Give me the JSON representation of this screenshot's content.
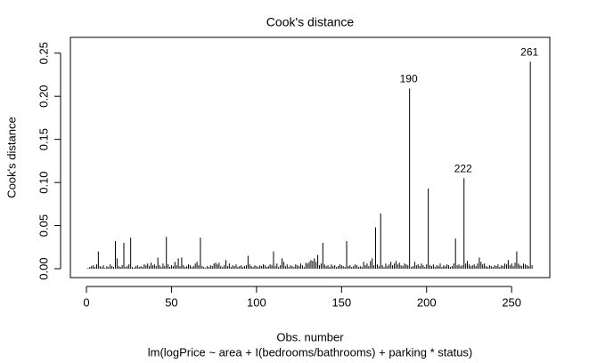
{
  "chart_data": {
    "type": "spike",
    "title": "Cook's distance",
    "xlabel": "Obs. number",
    "ylabel": "Cook's distance",
    "subtitle": "lm(logPrice ~ area + I(bedrooms/bathrooms) + parking * status)",
    "color": "#000000",
    "xlim": [
      -9.44,
      272.44
    ],
    "ylim": [
      -0.0103,
      0.2683
    ],
    "xticks": [
      0,
      50,
      100,
      150,
      200,
      250
    ],
    "yticks": [
      {
        "value": 0,
        "label": "0.00"
      },
      {
        "value": 0.05,
        "label": "0.05"
      },
      {
        "value": 0.1,
        "label": "0.10"
      },
      {
        "value": 0.15,
        "label": "0.15"
      },
      {
        "value": 0.2,
        "label": "0.20"
      },
      {
        "value": 0.25,
        "label": "0.25"
      }
    ],
    "x": [
      1,
      2,
      3,
      4,
      5,
      6,
      7,
      8,
      9,
      10,
      11,
      12,
      13,
      14,
      15,
      16,
      17,
      18,
      19,
      20,
      21,
      22,
      23,
      24,
      25,
      26,
      27,
      28,
      29,
      30,
      31,
      32,
      33,
      34,
      35,
      36,
      37,
      38,
      39,
      40,
      41,
      42,
      43,
      44,
      45,
      46,
      47,
      48,
      49,
      50,
      51,
      52,
      53,
      54,
      55,
      56,
      57,
      58,
      59,
      60,
      61,
      62,
      63,
      64,
      65,
      66,
      67,
      68,
      69,
      70,
      71,
      72,
      73,
      74,
      75,
      76,
      77,
      78,
      79,
      80,
      81,
      82,
      83,
      84,
      85,
      86,
      87,
      88,
      89,
      90,
      91,
      92,
      93,
      94,
      95,
      96,
      97,
      98,
      99,
      100,
      101,
      102,
      103,
      104,
      105,
      106,
      107,
      108,
      109,
      110,
      111,
      112,
      113,
      114,
      115,
      116,
      117,
      118,
      119,
      120,
      121,
      122,
      123,
      124,
      125,
      126,
      127,
      128,
      129,
      130,
      131,
      132,
      133,
      134,
      135,
      136,
      137,
      138,
      139,
      140,
      141,
      142,
      143,
      144,
      145,
      146,
      147,
      148,
      149,
      150,
      151,
      152,
      153,
      154,
      155,
      156,
      157,
      158,
      159,
      160,
      161,
      162,
      163,
      164,
      165,
      166,
      167,
      168,
      169,
      170,
      171,
      172,
      173,
      174,
      175,
      176,
      177,
      178,
      179,
      180,
      181,
      182,
      183,
      184,
      185,
      186,
      187,
      188,
      189,
      190,
      191,
      192,
      193,
      194,
      195,
      196,
      197,
      198,
      199,
      200,
      201,
      202,
      203,
      204,
      205,
      206,
      207,
      208,
      209,
      210,
      211,
      212,
      213,
      214,
      215,
      216,
      217,
      218,
      219,
      220,
      221,
      222,
      223,
      224,
      225,
      226,
      227,
      228,
      229,
      230,
      231,
      232,
      233,
      234,
      235,
      236,
      237,
      238,
      239,
      240,
      241,
      242,
      243,
      244,
      245,
      246,
      247,
      248,
      249,
      250,
      251,
      252,
      253,
      254,
      255,
      256,
      257,
      258,
      259,
      260,
      261,
      262
    ],
    "values": [
      0.001,
      0.002,
      0.003,
      0.004,
      0.002,
      0.005,
      0.02,
      0.003,
      0.002,
      0.004,
      0.001,
      0.003,
      0.002,
      0.005,
      0.003,
      0.002,
      0.032,
      0.012,
      0.003,
      0.002,
      0.004,
      0.03,
      0.002,
      0.003,
      0.005,
      0.036,
      0.002,
      0.001,
      0.003,
      0.004,
      0.002,
      0.003,
      0.002,
      0.005,
      0.004,
      0.006,
      0.003,
      0.007,
      0.004,
      0.005,
      0.003,
      0.013,
      0.004,
      0.002,
      0.006,
      0.003,
      0.037,
      0.005,
      0.002,
      0.004,
      0.003,
      0.008,
      0.004,
      0.012,
      0.003,
      0.013,
      0.004,
      0.002,
      0.003,
      0.005,
      0.004,
      0.002,
      0.003,
      0.006,
      0.008,
      0.004,
      0.036,
      0.003,
      0.002,
      0.001,
      0.003,
      0.002,
      0.004,
      0.003,
      0.006,
      0.007,
      0.005,
      0.007,
      0.003,
      0.002,
      0.004,
      0.01,
      0.003,
      0.006,
      0.002,
      0.004,
      0.003,
      0.005,
      0.002,
      0.003,
      0.004,
      0.002,
      0.003,
      0.004,
      0.015,
      0.005,
      0.003,
      0.002,
      0.004,
      0.003,
      0.002,
      0.004,
      0.003,
      0.005,
      0.004,
      0.002,
      0.003,
      0.005,
      0.004,
      0.02,
      0.003,
      0.006,
      0.002,
      0.004,
      0.012,
      0.008,
      0.003,
      0.005,
      0.002,
      0.004,
      0.003,
      0.002,
      0.005,
      0.004,
      0.003,
      0.006,
      0.004,
      0.002,
      0.007,
      0.006,
      0.008,
      0.01,
      0.009,
      0.012,
      0.008,
      0.016,
      0.004,
      0.006,
      0.03,
      0.005,
      0.003,
      0.004,
      0.002,
      0.005,
      0.003,
      0.004,
      0.002,
      0.003,
      0.005,
      0.004,
      0.003,
      0.002,
      0.032,
      0.003,
      0.004,
      0.002,
      0.003,
      0.005,
      0.004,
      0.002,
      0.003,
      0.002,
      0.008,
      0.004,
      0.006,
      0.003,
      0.009,
      0.012,
      0.004,
      0.048,
      0.005,
      0.003,
      0.064,
      0.004,
      0.002,
      0.006,
      0.003,
      0.005,
      0.008,
      0.004,
      0.006,
      0.009,
      0.005,
      0.007,
      0.004,
      0.003,
      0.006,
      0.005,
      0.004,
      0.209,
      0.002,
      0.003,
      0.008,
      0.004,
      0.005,
      0.003,
      0.006,
      0.004,
      0.002,
      0.005,
      0.093,
      0.004,
      0.003,
      0.005,
      0.002,
      0.004,
      0.003,
      0.006,
      0.002,
      0.004,
      0.003,
      0.005,
      0.004,
      0.002,
      0.003,
      0.006,
      0.035,
      0.004,
      0.005,
      0.003,
      0.004,
      0.105,
      0.006,
      0.009,
      0.005,
      0.003,
      0.004,
      0.005,
      0.003,
      0.006,
      0.013,
      0.008,
      0.005,
      0.006,
      0.003,
      0.002,
      0.004,
      0.003,
      0.002,
      0.004,
      0.003,
      0.005,
      0.002,
      0.004,
      0.003,
      0.006,
      0.005,
      0.01,
      0.004,
      0.006,
      0.003,
      0.007,
      0.02,
      0.006,
      0.004,
      0.003,
      0.006,
      0.005,
      0.004,
      0.003,
      0.24,
      0.004
    ],
    "value_labels": [
      null,
      null,
      null,
      null,
      null,
      null,
      null,
      null,
      null,
      null,
      null,
      null,
      null,
      null,
      null,
      null,
      null,
      null,
      null,
      null,
      null,
      null,
      null,
      null,
      null,
      null,
      null,
      null,
      null,
      null,
      null,
      null,
      null,
      null,
      null,
      null,
      null,
      null,
      null,
      null,
      null,
      null,
      null,
      null,
      null,
      null,
      null,
      null,
      null,
      null,
      null,
      null,
      null,
      null,
      null,
      null,
      null,
      null,
      null,
      null,
      null,
      null,
      null,
      null,
      null,
      null,
      null,
      null,
      null,
      null,
      null,
      null,
      null,
      null,
      null,
      null,
      null,
      null,
      null,
      null,
      null,
      null,
      null,
      null,
      null,
      null,
      null,
      null,
      null,
      null,
      null,
      null,
      null,
      null,
      null,
      null,
      null,
      null,
      null,
      null,
      null,
      null,
      null,
      null,
      null,
      null,
      null,
      null,
      null,
      null,
      null,
      null,
      null,
      null,
      null,
      null,
      null,
      null,
      null,
      null,
      null,
      null,
      null,
      null,
      null,
      null,
      null,
      null,
      null,
      null,
      null,
      null,
      null,
      null,
      null,
      null,
      null,
      null,
      null,
      null,
      null,
      null,
      null,
      null,
      null,
      null,
      null,
      null,
      null,
      null,
      null,
      null,
      null,
      null,
      null,
      null,
      null,
      null,
      null,
      null,
      null,
      null,
      null,
      null,
      null,
      null,
      null,
      null,
      null,
      null,
      null,
      null,
      null,
      null,
      null,
      null,
      null,
      null,
      null,
      null,
      null,
      null,
      null,
      null,
      null,
      null,
      null,
      null,
      null,
      "190",
      null,
      null,
      null,
      null,
      null,
      null,
      null,
      null,
      null,
      null,
      null,
      null,
      null,
      null,
      null,
      null,
      null,
      null,
      null,
      null,
      null,
      null,
      null,
      null,
      null,
      null,
      null,
      null,
      null,
      null,
      null,
      "222",
      null,
      null,
      null,
      null,
      null,
      null,
      null,
      null,
      null,
      null,
      null,
      null,
      null,
      null,
      null,
      null,
      null,
      null,
      null,
      null,
      null,
      null,
      null,
      null,
      null,
      null,
      null,
      null,
      null,
      null,
      null,
      null,
      null,
      null,
      null,
      null,
      null,
      null,
      "261",
      null
    ]
  }
}
